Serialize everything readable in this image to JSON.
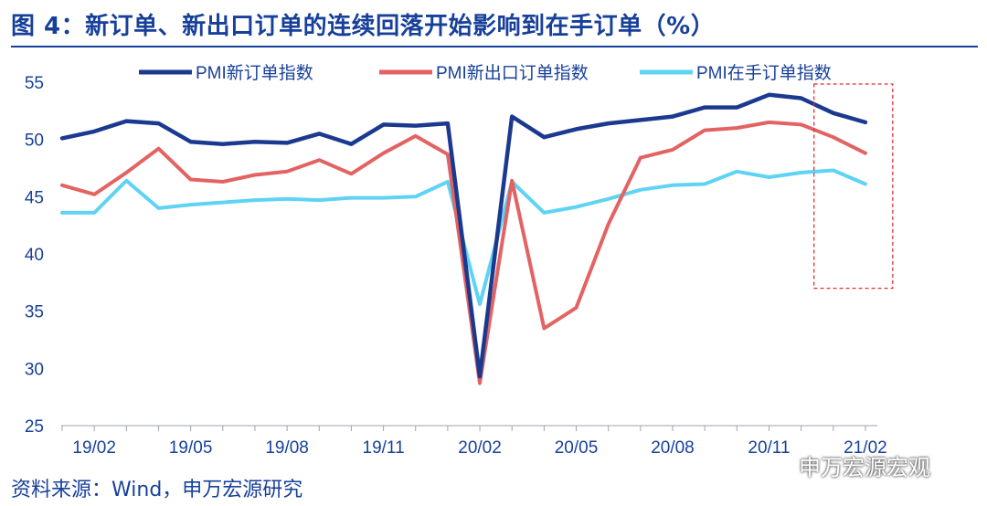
{
  "title": "图 4：新订单、新出口订单的连续回落开始影响到在手订单（%）",
  "source": "资料来源：Wind，申万宏源研究",
  "watermark": "申万宏源宏观",
  "watermark_icon": "wechat-icon",
  "colors": {
    "title": "#17409a",
    "new_orders": "#1b3a8f",
    "new_export_orders": "#e36363",
    "backlog_orders": "#5fd3f3",
    "highlight_box": "#e03030"
  },
  "chart_data": {
    "type": "line",
    "title": "",
    "xlabel": "",
    "ylabel": "",
    "ylim": [
      25,
      55
    ],
    "yticks": [
      25,
      30,
      35,
      40,
      45,
      50,
      55
    ],
    "x_tick_labels": [
      "19/02",
      "19/05",
      "19/08",
      "19/11",
      "20/02",
      "20/05",
      "20/08",
      "20/11",
      "21/02"
    ],
    "x": [
      "19/01",
      "19/02",
      "19/03",
      "19/04",
      "19/05",
      "19/06",
      "19/07",
      "19/08",
      "19/09",
      "19/10",
      "19/11",
      "19/12",
      "20/01",
      "20/02",
      "20/03",
      "20/04",
      "20/05",
      "20/06",
      "20/07",
      "20/08",
      "20/09",
      "20/10",
      "20/11",
      "20/12",
      "21/01",
      "21/02"
    ],
    "legend_position": "top",
    "grid": false,
    "series": [
      {
        "name": "PMI新订单指数",
        "color": "#1b3a8f",
        "values": [
          50.1,
          50.7,
          51.6,
          51.4,
          49.8,
          49.6,
          49.8,
          49.7,
          50.5,
          49.6,
          51.3,
          51.2,
          51.4,
          29.3,
          52.0,
          50.2,
          50.9,
          51.4,
          51.7,
          52.0,
          52.8,
          52.8,
          53.9,
          53.6,
          52.3,
          51.5
        ]
      },
      {
        "name": "PMI新出口订单指数",
        "color": "#e36363",
        "values": [
          46.0,
          45.2,
          47.1,
          49.2,
          46.5,
          46.3,
          46.9,
          47.2,
          48.2,
          47.0,
          48.8,
          50.3,
          48.7,
          28.7,
          46.4,
          33.5,
          35.3,
          42.6,
          48.4,
          49.1,
          50.8,
          51.0,
          51.5,
          51.3,
          50.2,
          48.8
        ]
      },
      {
        "name": "PMI在手订单指数",
        "color": "#5fd3f3",
        "values": [
          43.6,
          43.6,
          46.4,
          44.0,
          44.3,
          44.5,
          44.7,
          44.8,
          44.7,
          44.9,
          44.9,
          45.0,
          46.3,
          35.6,
          46.3,
          43.6,
          44.1,
          44.8,
          45.6,
          46.0,
          46.1,
          47.2,
          46.7,
          47.1,
          47.3,
          46.1
        ]
      }
    ],
    "annotation": {
      "type": "dashed-box",
      "x_from": "21/01",
      "x_to": "21/02",
      "y_from": 37,
      "y_to": 55
    }
  }
}
